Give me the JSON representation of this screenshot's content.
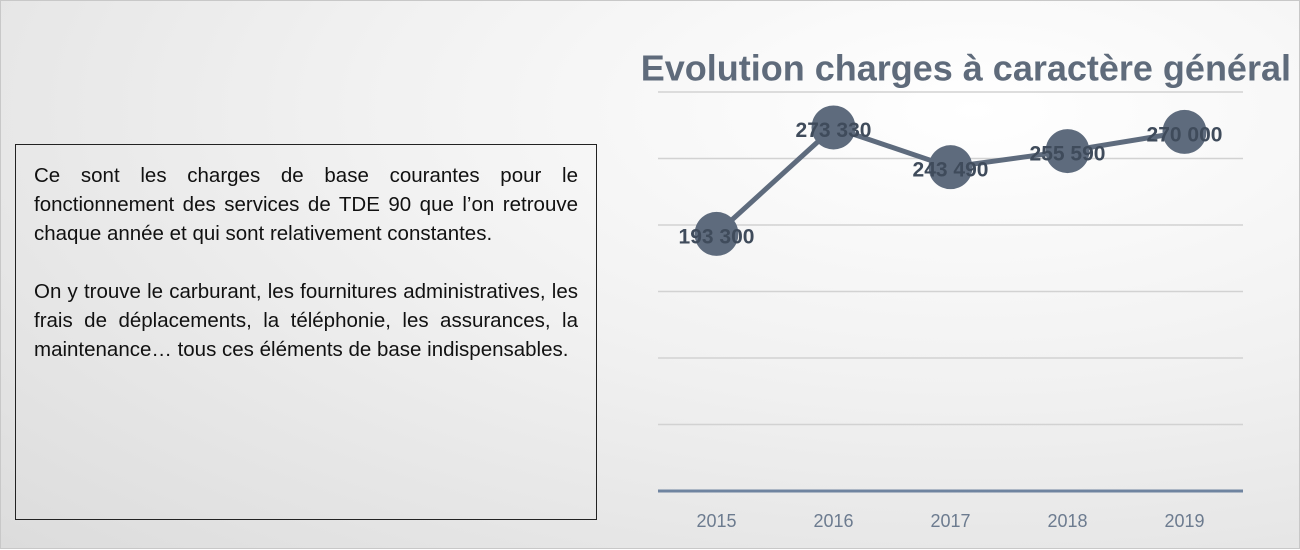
{
  "chart_data": {
    "type": "line",
    "title": "Evolution charges à caractère général",
    "categories": [
      "2015",
      "2016",
      "2017",
      "2018",
      "2019"
    ],
    "series": [
      {
        "color": "#5e6b7d",
        "values": [
          193300,
          273330,
          243490,
          255590,
          270000
        ],
        "value_labels": [
          "193 300",
          "273 330",
          "243 490",
          "255 590",
          "270 000"
        ]
      }
    ],
    "ylim": [
      0,
      300000
    ],
    "yticks": [
      0,
      50000,
      100000,
      150000,
      200000,
      250000,
      300000
    ],
    "grid": true
  },
  "text_box": {
    "paragraphs": [
      "Ce sont les charges de base courantes pour le fonctionnement des services de TDE 90 que l’on retrouve chaque année et qui sont relativement constantes.",
      "On y trouve le carburant, les fournitures administratives, les frais de déplacements, la téléphonie, les assurances, la maintenance… tous ces éléments de base indispensables."
    ]
  }
}
